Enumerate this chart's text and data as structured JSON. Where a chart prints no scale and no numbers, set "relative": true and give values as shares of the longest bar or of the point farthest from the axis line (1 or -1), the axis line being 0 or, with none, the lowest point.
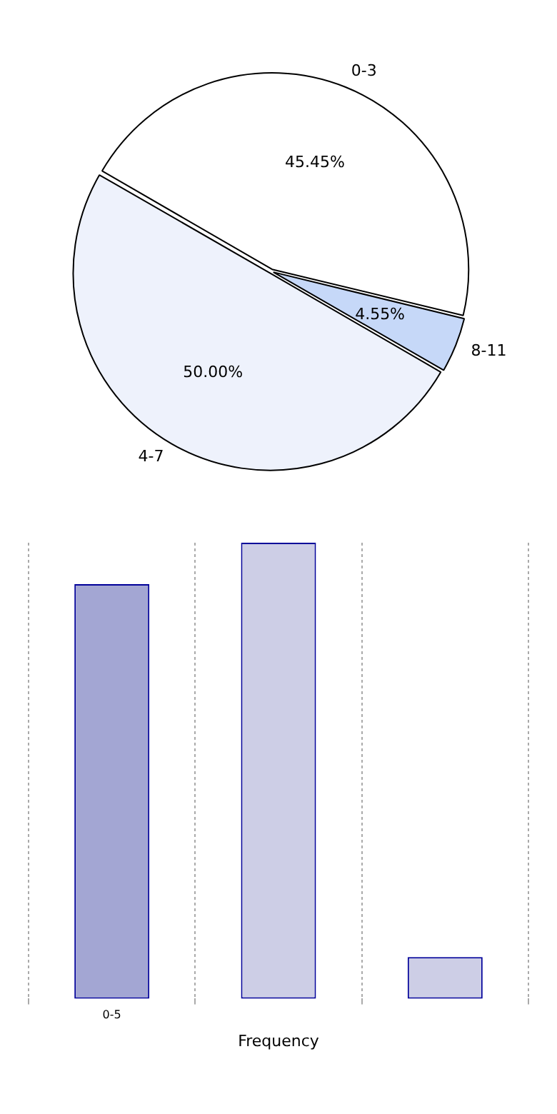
{
  "chart_data": [
    {
      "type": "pie",
      "categories": [
        "0-3",
        "8-11",
        "4-7"
      ],
      "values": [
        45.45,
        4.55,
        50.0
      ],
      "colors": [
        "#ffffff",
        "#c6d8f8",
        "#eef2fc"
      ],
      "value_labels": [
        "45.45%",
        "4.55%",
        "50.00%"
      ],
      "legend": false
    },
    {
      "type": "bar",
      "categories": [
        "0-5",
        null,
        null
      ],
      "values": [
        0.909,
        1,
        0.091
      ],
      "colors": [
        "#a3a6d3",
        "#cdcee6",
        "#cdcee6"
      ],
      "relative": true,
      "xlabel": "Frequency",
      "grid": "x",
      "legend": false
    }
  ]
}
